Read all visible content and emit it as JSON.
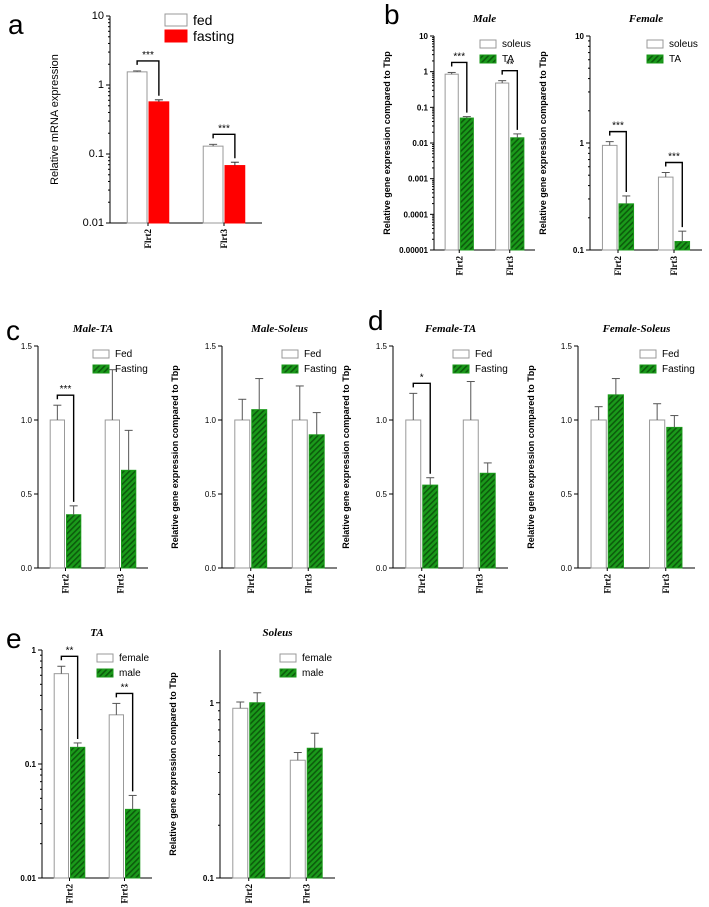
{
  "panel_letters": [
    "a",
    "b",
    "c",
    "d",
    "e"
  ],
  "colors": {
    "red": "#ff0000",
    "green": "#1a9a1a",
    "green_dark": "#0c5c0c",
    "white": "#ffffff",
    "axis": "#000000"
  },
  "chart_data": [
    {
      "id": "a",
      "type": "bar",
      "title": "",
      "ylabel": "Relative mRNA expression",
      "xlabel": "",
      "scale": "log",
      "ylim": [
        0.01,
        10
      ],
      "yticks": [
        "0.01",
        "0.1",
        "1",
        "10"
      ],
      "ytick_values": [
        0.01,
        0.1,
        1,
        10
      ],
      "categories": [
        "Flrt2",
        "Flrt3"
      ],
      "series": [
        {
          "name": "fed",
          "style": "white",
          "values": [
            1.55,
            0.13
          ],
          "errors": [
            0.05,
            0.008
          ]
        },
        {
          "name": "fasting",
          "style": "red",
          "values": [
            0.57,
            0.068
          ],
          "errors": [
            0.04,
            0.008
          ]
        }
      ],
      "significance": [
        "***",
        "***"
      ],
      "legend": "top-right"
    },
    {
      "id": "b1",
      "type": "bar",
      "title": "Male",
      "ylabel": "Relative gene expression compared to Tbp",
      "xlabel": "",
      "scale": "log",
      "ylim": [
        1e-05,
        10
      ],
      "yticks": [
        "0.00001",
        "0.0001",
        "0.001",
        "0.01",
        "0.1",
        "1",
        "10"
      ],
      "ytick_values": [
        1e-05,
        0.0001,
        0.001,
        0.01,
        0.1,
        1,
        10
      ],
      "categories": [
        "Flrt2",
        "Flrt3"
      ],
      "series": [
        {
          "name": "soleus",
          "style": "white",
          "values": [
            0.85,
            0.48
          ],
          "errors": [
            0.1,
            0.08
          ]
        },
        {
          "name": "TA",
          "style": "hatch",
          "values": [
            0.05,
            0.014
          ],
          "errors": [
            0.005,
            0.004
          ]
        }
      ],
      "significance": [
        "***",
        "**"
      ],
      "legend": "top-right"
    },
    {
      "id": "b2",
      "type": "bar",
      "title": "Female",
      "ylabel": "Relative gene expression compared to Tbp",
      "xlabel": "",
      "scale": "log",
      "ylim": [
        0.1,
        10
      ],
      "yticks": [
        "0.1",
        "1",
        "10"
      ],
      "ytick_values": [
        0.1,
        1,
        10
      ],
      "categories": [
        "Flrt2",
        "Flrt3"
      ],
      "series": [
        {
          "name": "soleus",
          "style": "white",
          "values": [
            0.95,
            0.48
          ],
          "errors": [
            0.08,
            0.05
          ]
        },
        {
          "name": "TA",
          "style": "hatch",
          "values": [
            0.27,
            0.12
          ],
          "errors": [
            0.05,
            0.03
          ]
        }
      ],
      "significance": [
        "***",
        "***"
      ],
      "legend": "top-right"
    },
    {
      "id": "c1",
      "type": "bar",
      "title": "Male-TA",
      "ylabel": "Relative gene expression compared to Tbp",
      "xlabel": "",
      "scale": "linear",
      "ylim": [
        0,
        1.5
      ],
      "yticks": [
        "0.0",
        "0.5",
        "1.0",
        "1.5"
      ],
      "ytick_values": [
        0,
        0.5,
        1.0,
        1.5
      ],
      "categories": [
        "Flrt2",
        "Flrt3"
      ],
      "series": [
        {
          "name": "Fed",
          "style": "white",
          "values": [
            1.0,
            1.0
          ],
          "errors": [
            0.1,
            0.34
          ]
        },
        {
          "name": "Fasting",
          "style": "hatch",
          "values": [
            0.36,
            0.66
          ],
          "errors": [
            0.06,
            0.27
          ]
        }
      ],
      "significance": [
        "***",
        ""
      ],
      "legend": "top-right"
    },
    {
      "id": "c2",
      "type": "bar",
      "title": "Male-Soleus",
      "ylabel": "Relative gene expression compared to Tbp",
      "xlabel": "",
      "scale": "linear",
      "ylim": [
        0,
        1.5
      ],
      "yticks": [
        "0.0",
        "0.5",
        "1.0",
        "1.5"
      ],
      "ytick_values": [
        0,
        0.5,
        1.0,
        1.5
      ],
      "categories": [
        "Flrt2",
        "Flrt3"
      ],
      "series": [
        {
          "name": "Fed",
          "style": "white",
          "values": [
            1.0,
            1.0
          ],
          "errors": [
            0.14,
            0.23
          ]
        },
        {
          "name": "Fasting",
          "style": "hatch",
          "values": [
            1.07,
            0.9
          ],
          "errors": [
            0.21,
            0.15
          ]
        }
      ],
      "significance": [
        "",
        ""
      ],
      "legend": "top-right"
    },
    {
      "id": "d1",
      "type": "bar",
      "title": "Female-TA",
      "ylabel": "Relative gene expression compared to Tbp",
      "xlabel": "",
      "scale": "linear",
      "ylim": [
        0,
        1.5
      ],
      "yticks": [
        "0.0",
        "0.5",
        "1.0",
        "1.5"
      ],
      "ytick_values": [
        0,
        0.5,
        1.0,
        1.5
      ],
      "categories": [
        "Flrt2",
        "Flrt3"
      ],
      "series": [
        {
          "name": "Fed",
          "style": "white",
          "values": [
            1.0,
            1.0
          ],
          "errors": [
            0.18,
            0.26
          ]
        },
        {
          "name": "Fasting",
          "style": "hatch",
          "values": [
            0.56,
            0.64
          ],
          "errors": [
            0.05,
            0.07
          ]
        }
      ],
      "significance": [
        "*",
        ""
      ],
      "legend": "top-right"
    },
    {
      "id": "d2",
      "type": "bar",
      "title": "Female-Soleus",
      "ylabel": "Relative gene expression compared to Tbp",
      "xlabel": "",
      "scale": "linear",
      "ylim": [
        0,
        1.5
      ],
      "yticks": [
        "0.0",
        "0.5",
        "1.0",
        "1.5"
      ],
      "ytick_values": [
        0,
        0.5,
        1.0,
        1.5
      ],
      "categories": [
        "Flrt2",
        "Flrt3"
      ],
      "series": [
        {
          "name": "Fed",
          "style": "white",
          "values": [
            1.0,
            1.0
          ],
          "errors": [
            0.09,
            0.11
          ]
        },
        {
          "name": "Fasting",
          "style": "hatch",
          "values": [
            1.17,
            0.95
          ],
          "errors": [
            0.11,
            0.08
          ]
        }
      ],
      "significance": [
        "",
        ""
      ],
      "legend": "top-right"
    },
    {
      "id": "e1",
      "type": "bar",
      "title": "TA",
      "ylabel": "Relative gene expression compared to Tbp",
      "xlabel": "",
      "scale": "log",
      "ylim": [
        0.01,
        1
      ],
      "yticks": [
        "0.01",
        "0.1",
        "1"
      ],
      "ytick_values": [
        0.01,
        0.1,
        1
      ],
      "categories": [
        "Flrt2",
        "Flrt3"
      ],
      "series": [
        {
          "name": "female",
          "style": "white",
          "values": [
            0.62,
            0.27
          ],
          "errors": [
            0.1,
            0.07
          ]
        },
        {
          "name": "male",
          "style": "hatch",
          "values": [
            0.14,
            0.04
          ],
          "errors": [
            0.013,
            0.013
          ]
        }
      ],
      "significance": [
        "**",
        "**"
      ],
      "legend": "top-right"
    },
    {
      "id": "e2",
      "type": "bar",
      "title": "Soleus",
      "ylabel": "Relative gene expression compared to Tbp",
      "xlabel": "",
      "scale": "log",
      "ylim": [
        0.1,
        2
      ],
      "yticks": [
        "0.1",
        "1"
      ],
      "ytick_values": [
        0.1,
        1
      ],
      "categories": [
        "Flrt2",
        "Flrt3"
      ],
      "series": [
        {
          "name": "female",
          "style": "white",
          "values": [
            0.93,
            0.47
          ],
          "errors": [
            0.08,
            0.05
          ]
        },
        {
          "name": "male",
          "style": "hatch",
          "values": [
            1.0,
            0.55
          ],
          "errors": [
            0.14,
            0.12
          ]
        }
      ],
      "significance": [
        "",
        ""
      ],
      "legend": "top-right"
    }
  ]
}
